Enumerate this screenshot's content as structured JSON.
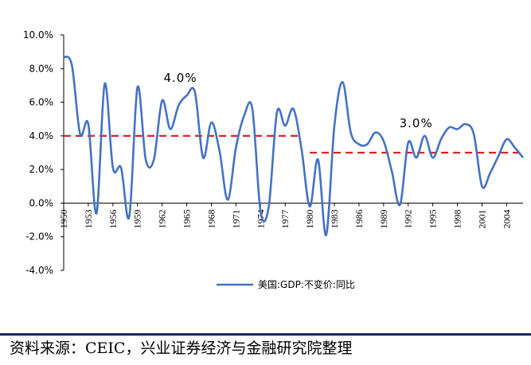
{
  "chart_data": {
    "type": "line",
    "title": "",
    "xlabel": "",
    "ylabel": "",
    "ylim": [
      -4,
      10
    ],
    "yticks": [
      "10.0%",
      "8.0%",
      "6.0%",
      "4.0%",
      "2.0%",
      "0.0%",
      "-2.0%",
      "-4.0%"
    ],
    "ytick_values": [
      10,
      8,
      6,
      4,
      2,
      0,
      -2,
      -4
    ],
    "xticks": [
      "1950",
      "1953",
      "1956",
      "1959",
      "1962",
      "1965",
      "1968",
      "1971",
      "1974",
      "1977",
      "1980",
      "1983",
      "1986",
      "1989",
      "1992",
      "1995",
      "1998",
      "2001",
      "2004"
    ],
    "xlim": [
      1950,
      2006
    ],
    "series": [
      {
        "name": "美国:GDP:不变价:同比",
        "color": "#4472c4",
        "x": [
          1950,
          1951,
          1952,
          1953,
          1954,
          1955,
          1956,
          1957,
          1958,
          1959,
          1960,
          1961,
          1962,
          1963,
          1964,
          1965,
          1966,
          1967,
          1968,
          1969,
          1970,
          1971,
          1972,
          1973,
          1974,
          1975,
          1976,
          1977,
          1978,
          1979,
          1980,
          1981,
          1982,
          1983,
          1984,
          1985,
          1986,
          1987,
          1988,
          1989,
          1990,
          1991,
          1992,
          1993,
          1994,
          1995,
          1996,
          1997,
          1998,
          1999,
          2000,
          2001,
          2002,
          2003,
          2004,
          2005,
          2006
        ],
        "values": [
          8.7,
          8.2,
          4.1,
          4.7,
          -0.6,
          7.1,
          2.1,
          2.1,
          -0.8,
          6.9,
          2.6,
          2.6,
          6.1,
          4.4,
          5.8,
          6.4,
          6.6,
          2.7,
          4.8,
          3.1,
          0.2,
          3.3,
          5.2,
          5.6,
          -0.5,
          -0.2,
          5.4,
          4.6,
          5.6,
          3.2,
          -0.2,
          2.6,
          -1.9,
          4.6,
          7.2,
          4.2,
          3.5,
          3.5,
          4.2,
          3.7,
          1.9,
          -0.1,
          3.6,
          2.7,
          4.0,
          2.7,
          3.8,
          4.5,
          4.4,
          4.7,
          4.1,
          1.0,
          1.8,
          2.8,
          3.8,
          3.3,
          2.7
        ]
      }
    ],
    "reference_lines": [
      {
        "label": "4.0%",
        "value": 4.0,
        "x_start": 1950,
        "x_end": 1979,
        "color": "#e02020"
      },
      {
        "label": "3.0%",
        "value": 3.0,
        "x_start": 1980,
        "x_end": 2006,
        "color": "#e02020"
      }
    ],
    "legend": "bottom-center"
  },
  "source_text": "资料来源：CEIC，兴业证券经济与金融研究院整理"
}
